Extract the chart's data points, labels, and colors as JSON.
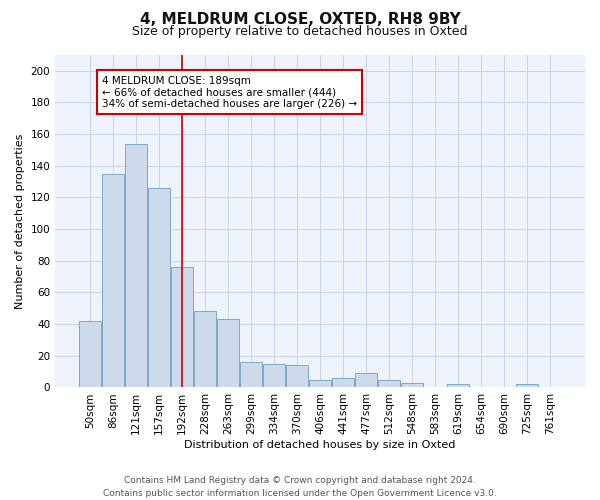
{
  "title1": "4, MELDRUM CLOSE, OXTED, RH8 9BY",
  "title2": "Size of property relative to detached houses in Oxted",
  "xlabel": "Distribution of detached houses by size in Oxted",
  "ylabel": "Number of detached properties",
  "categories": [
    "50sqm",
    "86sqm",
    "121sqm",
    "157sqm",
    "192sqm",
    "228sqm",
    "263sqm",
    "299sqm",
    "334sqm",
    "370sqm",
    "406sqm",
    "441sqm",
    "477sqm",
    "512sqm",
    "548sqm",
    "583sqm",
    "619sqm",
    "654sqm",
    "690sqm",
    "725sqm",
    "761sqm"
  ],
  "values": [
    42,
    135,
    154,
    126,
    76,
    48,
    43,
    16,
    15,
    14,
    5,
    6,
    9,
    5,
    3,
    0,
    2,
    0,
    0,
    2,
    0
  ],
  "bar_color": "#ccdaeb",
  "bar_edge_color": "#6a9fc0",
  "vline_x": 4.0,
  "vline_color": "#cc0000",
  "annotation_text": "4 MELDRUM CLOSE: 189sqm\n← 66% of detached houses are smaller (444)\n34% of semi-detached houses are larger (226) →",
  "annotation_box_color": "#ffffff",
  "annotation_box_edge": "#cc0000",
  "ylim": [
    0,
    210
  ],
  "yticks": [
    0,
    20,
    40,
    60,
    80,
    100,
    120,
    140,
    160,
    180,
    200
  ],
  "footer": "Contains HM Land Registry data © Crown copyright and database right 2024.\nContains public sector information licensed under the Open Government Licence v3.0.",
  "bg_color": "#eef2fa",
  "grid_color": "#c5cde0",
  "title_fontsize": 11,
  "subtitle_fontsize": 9,
  "axis_label_fontsize": 8,
  "tick_fontsize": 7.5,
  "footer_fontsize": 6.5
}
